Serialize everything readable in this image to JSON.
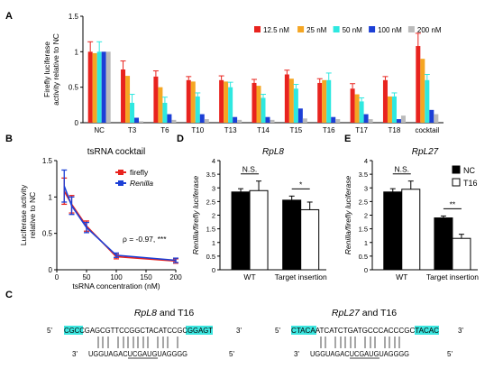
{
  "panels": {
    "a": "A",
    "b": "B",
    "c": "C",
    "d": "D",
    "e": "E"
  },
  "chart_data": [
    {
      "id": "A",
      "type": "bar",
      "ylabel_lines": [
        "Firefly luciferase",
        "activity relative to NC"
      ],
      "ylim": [
        0,
        1.5
      ],
      "yticks": [
        "0",
        "0.5",
        "1",
        "1.5"
      ],
      "categories": [
        "NC",
        "T3",
        "T6",
        "T10",
        "T13",
        "T14",
        "T15",
        "T16",
        "T17",
        "T18",
        "cocktail"
      ],
      "legend_position": "top-right",
      "series": [
        {
          "name": "12.5 nM",
          "color": "#e8231e",
          "values": [
            1.0,
            0.75,
            0.65,
            0.6,
            0.6,
            0.56,
            0.68,
            0.56,
            0.48,
            0.6,
            1.08
          ],
          "errors": [
            0.14,
            0.12,
            0.08,
            0.05,
            0.06,
            0.05,
            0.06,
            0.06,
            0.07,
            0.05,
            0.18
          ]
        },
        {
          "name": "25 nM",
          "color": "#f5a623",
          "values": [
            0.98,
            0.66,
            0.5,
            0.58,
            0.58,
            0.52,
            0.62,
            0.6,
            0.4,
            0.37,
            0.9
          ]
        },
        {
          "name": "50 nM",
          "color": "#2ee8e0",
          "values": [
            1.0,
            0.28,
            0.28,
            0.37,
            0.5,
            0.35,
            0.48,
            0.6,
            0.3,
            0.37,
            0.6
          ],
          "errors": [
            0.14,
            0.12,
            0.08,
            0.05,
            0.07,
            0.05,
            0.06,
            0.1,
            0.05,
            0.05,
            0.08
          ]
        },
        {
          "name": "100 nM",
          "color": "#1c3fd6",
          "values": [
            1.0,
            0.07,
            0.12,
            0.12,
            0.08,
            0.08,
            0.2,
            0.08,
            0.12,
            0.05,
            0.18
          ]
        },
        {
          "name": "200 nM",
          "color": "#bbbbbb",
          "values": [
            1.0,
            0.02,
            0.04,
            0.05,
            0.04,
            0.04,
            0.06,
            0.05,
            0.05,
            0.1,
            0.12
          ]
        }
      ]
    },
    {
      "id": "B",
      "type": "line",
      "title": "tsRNA cocktail",
      "xlabel": "tsRNA concentration (nM)",
      "ylabel_lines": [
        "Luciferase activity",
        "relative to NC"
      ],
      "xlim": [
        0,
        200
      ],
      "ylim": [
        0,
        1.5
      ],
      "xticks": [
        "0",
        "50",
        "100",
        "150",
        "200"
      ],
      "yticks": [
        "0",
        "0.5",
        "1",
        "1.5"
      ],
      "annotation": "ρ = -0.97, ***",
      "series": [
        {
          "name": "firefly",
          "color": "#e8231e",
          "x": [
            12.5,
            25,
            50,
            100,
            200
          ],
          "y": [
            1.08,
            0.9,
            0.6,
            0.18,
            0.12
          ],
          "errors": [
            0.18,
            0.12,
            0.07,
            0.03,
            0.03
          ]
        },
        {
          "name": "Renilla",
          "color": "#1c3fd6",
          "x": [
            12.5,
            25,
            50,
            100,
            200
          ],
          "y": [
            1.15,
            0.88,
            0.58,
            0.2,
            0.13
          ],
          "errors": [
            0.22,
            0.12,
            0.07,
            0.03,
            0.03
          ]
        }
      ]
    },
    {
      "id": "D",
      "type": "bar",
      "title": "RpL8",
      "ylabel": "Renilla/firefly luciferase",
      "ylim": [
        0,
        4
      ],
      "yticks": [
        "0",
        "0.5",
        "1",
        "1.5",
        "2",
        "2.5",
        "3",
        "3.5",
        "4"
      ],
      "categories": [
        "WT",
        "Target insertion"
      ],
      "significance": [
        "N.S.",
        "*"
      ],
      "series": [
        {
          "name": "NC",
          "color": "#000000",
          "values": [
            2.85,
            2.55
          ],
          "errors": [
            0.12,
            0.15
          ]
        },
        {
          "name": "T16",
          "color": "#ffffff",
          "values": [
            2.9,
            2.2
          ],
          "errors": [
            0.35,
            0.28
          ]
        }
      ]
    },
    {
      "id": "E",
      "type": "bar",
      "title": "RpL27",
      "ylabel": "Renilla/firefly luciferase",
      "ylim": [
        0,
        4
      ],
      "yticks": [
        "0",
        "0.5",
        "1",
        "1.5",
        "2",
        "2.5",
        "3",
        "3.5",
        "4"
      ],
      "categories": [
        "WT",
        "Target insertion"
      ],
      "significance": [
        "N.S.",
        "**"
      ],
      "legend_position": "top-right",
      "series": [
        {
          "name": "NC",
          "color": "#000000",
          "values": [
            2.85,
            1.9
          ],
          "errors": [
            0.12,
            0.07
          ]
        },
        {
          "name": "T16",
          "color": "#ffffff",
          "values": [
            2.95,
            1.15
          ],
          "errors": [
            0.3,
            0.15
          ]
        }
      ]
    }
  ],
  "panel_c": {
    "left": {
      "title_gene": "RpL8",
      "title_rest": " and T16",
      "top_prime5": "5'",
      "top_prime3": "3'",
      "top_seq": "CGCCGAGCGTTCCGGCTACATCCGCGGAGT",
      "bottom_prime3": "3'",
      "bottom_prime5": "5'",
      "bottom_seq": "UGGUAGACUCGAUGUAGGGG"
    },
    "right": {
      "title_gene": "RpL27",
      "title_rest": " and T16",
      "top_prime5": "5'",
      "top_prime3": "3'",
      "top_seq": "CTACAATCATCTGATGCCCACCCGCTACAC",
      "bottom_prime3": "3'",
      "bottom_prime5": "5'",
      "bottom_seq": "UGGUAGACUCGAUGUAGGGG"
    },
    "highlight_color": "#3de6e0"
  }
}
